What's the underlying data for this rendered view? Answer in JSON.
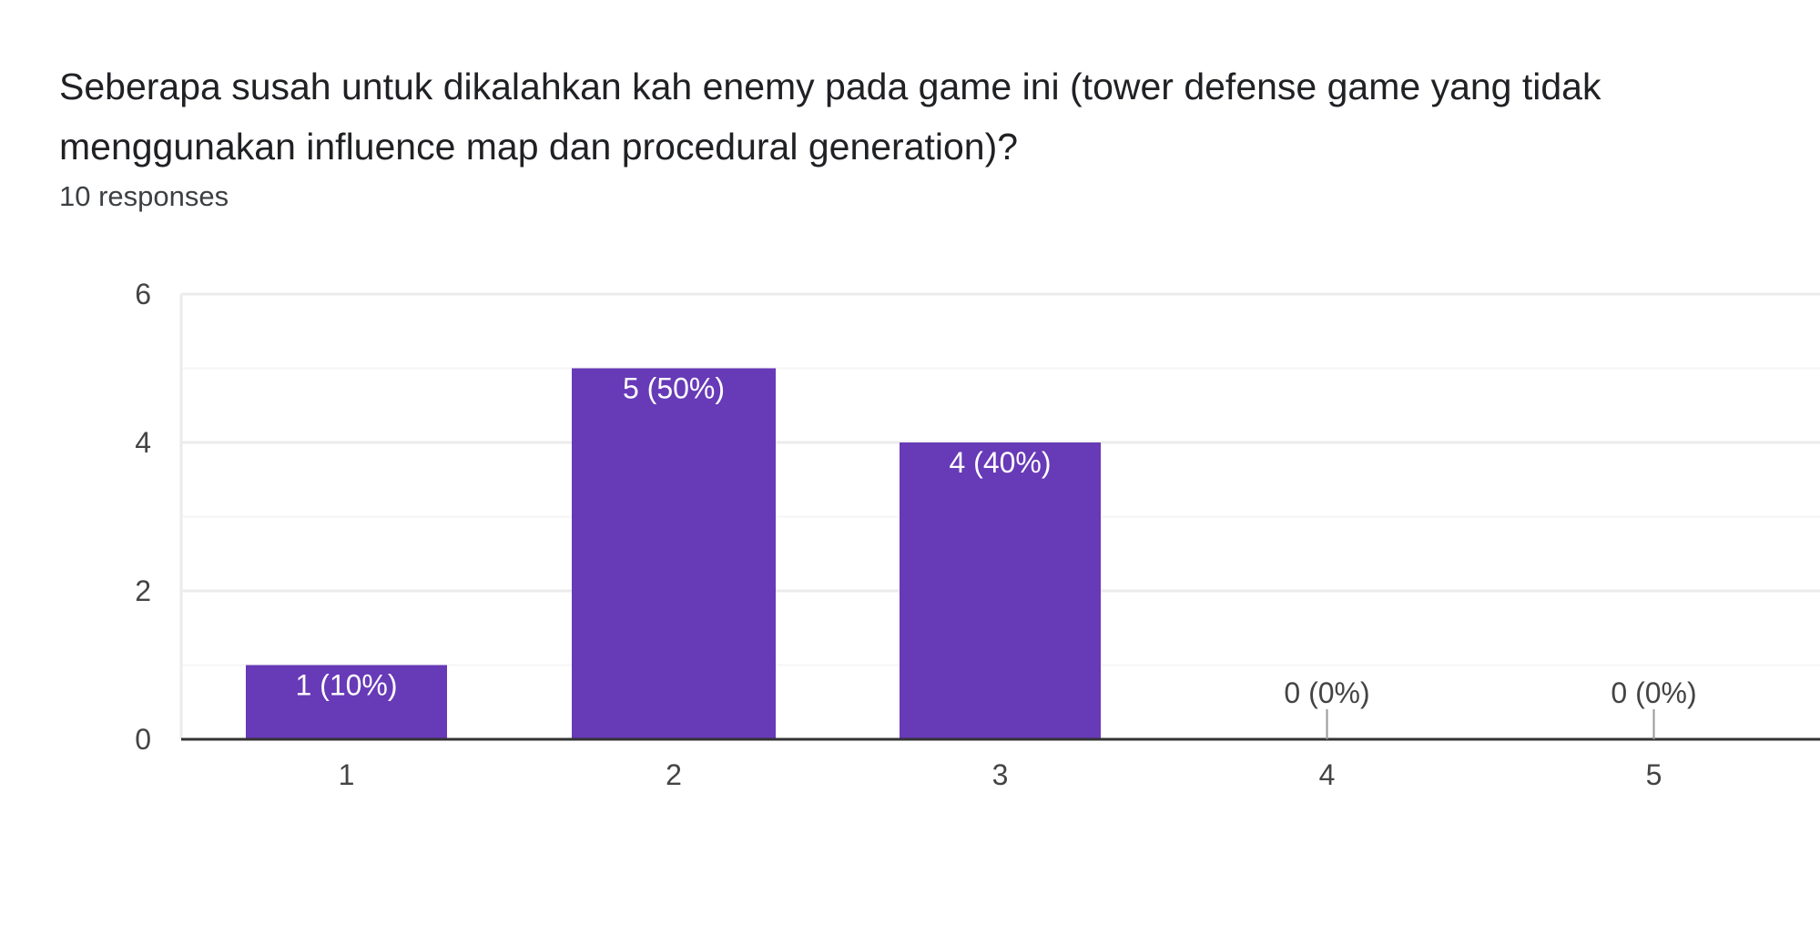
{
  "question": {
    "title": "Seberapa susah untuk dikalahkan kah enemy pada game ini (tower defense game yang tidak menggunakan influence map dan procedural generation)?",
    "response_count": "10 responses"
  },
  "colors": {
    "bar": "#673ab7",
    "label_inside": "#ffffff",
    "label_outside": "#444444",
    "gridline_major": "#ebebeb",
    "gridline_minor": "#f5f5f5",
    "axis": "#333333"
  },
  "chart_data": {
    "type": "bar",
    "categories": [
      "1",
      "2",
      "3",
      "4",
      "5"
    ],
    "values": [
      1,
      5,
      4,
      0,
      0
    ],
    "data_labels": [
      "1 (10%)",
      "5 (50%)",
      "4 (40%)",
      "0 (0%)",
      "0 (0%)"
    ],
    "y_ticks": [
      "0",
      "2",
      "4",
      "6"
    ],
    "ylim": [
      0,
      6
    ],
    "title": "",
    "xlabel": "",
    "ylabel": "",
    "grid": true,
    "legend": "none"
  }
}
